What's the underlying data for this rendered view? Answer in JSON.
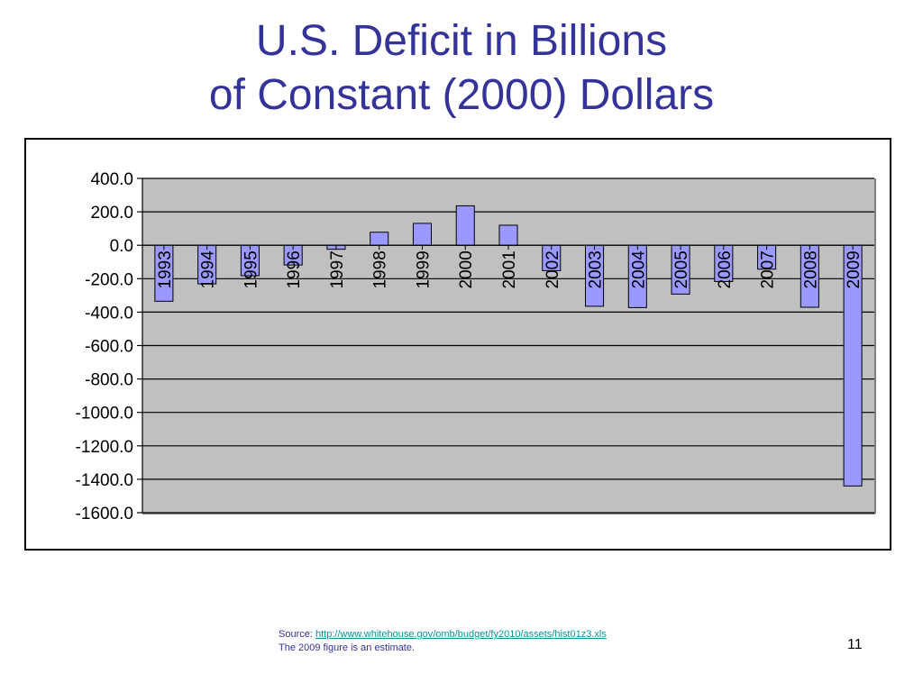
{
  "title": {
    "line1": "U.S. Deficit in Billions",
    "line2": "of Constant (2000) Dollars"
  },
  "source": {
    "label": "Source:",
    "url_text": "http://www.whitehouse.gov/omb/budget/fy2010/assets/hist01z3.xls",
    "note": "The 2009 figure is an estimate."
  },
  "page_number": "11",
  "colors": {
    "title": "#333399",
    "bar_fill": "#9999FF",
    "plot_bg": "#C0C0C0",
    "link": "#009999"
  },
  "chart_data": {
    "type": "bar",
    "categories": [
      "1993",
      "1994",
      "1995",
      "1996",
      "1997",
      "1998",
      "1999",
      "2000",
      "2001",
      "2002",
      "2003",
      "2004",
      "2005",
      "2006",
      "2007",
      "2008",
      "2009"
    ],
    "values": [
      -335,
      -231,
      -182,
      -118,
      -24,
      78,
      131,
      236,
      120,
      -152,
      -365,
      -373,
      -292,
      -217,
      -143,
      -371,
      -1440
    ],
    "ylim": [
      -1600,
      400
    ],
    "yticks": [
      "400.0",
      "200.0",
      "0.0",
      "-200.0",
      "-400.0",
      "-600.0",
      "-800.0",
      "-1000.0",
      "-1200.0",
      "-1400.0",
      "-1600.0"
    ],
    "ytick_values": [
      400,
      200,
      0,
      -200,
      -400,
      -600,
      -800,
      -1000,
      -1200,
      -1400,
      -1600
    ],
    "grid": true,
    "legend": "none",
    "xlabel": "",
    "ylabel": ""
  }
}
